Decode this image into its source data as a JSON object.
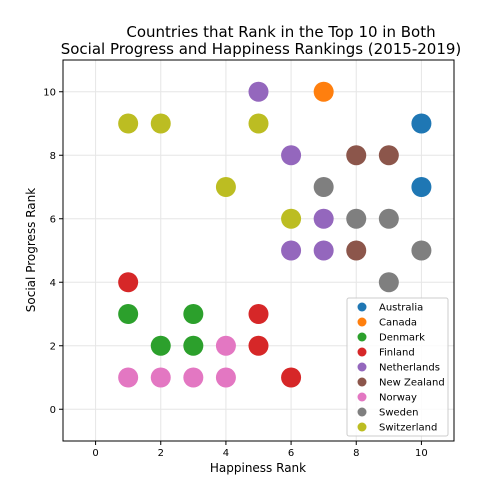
{
  "chart_data": {
    "type": "scatter",
    "title": [
      "Countries that Rank in the Top 10 in Both",
      "Social Progress and Happiness Rankings (2015-2019)"
    ],
    "xlabel": "Happiness Rank",
    "ylabel": "Social Progress Rank",
    "xlim": [
      -1,
      11
    ],
    "ylim": [
      -1,
      11
    ],
    "xticks": [
      0,
      2,
      4,
      6,
      8,
      10
    ],
    "yticks": [
      0,
      2,
      4,
      6,
      8,
      10
    ],
    "grid": true,
    "legend_position": "lower-right",
    "series": [
      {
        "name": "Australia",
        "color": "#1f77b4",
        "points": [
          [
            10,
            9
          ],
          [
            10,
            7
          ]
        ]
      },
      {
        "name": "Canada",
        "color": "#ff7f0e",
        "points": [
          [
            7,
            10
          ]
        ]
      },
      {
        "name": "Denmark",
        "color": "#2ca02c",
        "points": [
          [
            1,
            3
          ],
          [
            2,
            2
          ],
          [
            3,
            3
          ],
          [
            3,
            2
          ]
        ]
      },
      {
        "name": "Finland",
        "color": "#d62728",
        "points": [
          [
            1,
            4
          ],
          [
            5,
            3
          ],
          [
            5,
            2
          ],
          [
            6,
            1
          ]
        ]
      },
      {
        "name": "Netherlands",
        "color": "#9467bd",
        "points": [
          [
            5,
            10
          ],
          [
            6,
            8
          ],
          [
            7,
            6
          ],
          [
            6,
            5
          ],
          [
            7,
            5
          ]
        ]
      },
      {
        "name": "New Zealand",
        "color": "#8c564b",
        "points": [
          [
            8,
            8
          ],
          [
            9,
            8
          ],
          [
            8,
            5
          ]
        ]
      },
      {
        "name": "Norway",
        "color": "#e377c2",
        "points": [
          [
            1,
            1
          ],
          [
            2,
            1
          ],
          [
            3,
            1
          ],
          [
            4,
            1
          ],
          [
            4,
            2
          ]
        ]
      },
      {
        "name": "Sweden",
        "color": "#7f7f7f",
        "points": [
          [
            7,
            7
          ],
          [
            8,
            6
          ],
          [
            9,
            6
          ],
          [
            10,
            5
          ],
          [
            9,
            4
          ]
        ]
      },
      {
        "name": "Switzerland",
        "color": "#bcbd22",
        "points": [
          [
            1,
            9
          ],
          [
            2,
            9
          ],
          [
            5,
            9
          ],
          [
            4,
            7
          ],
          [
            6,
            6
          ]
        ]
      }
    ]
  }
}
